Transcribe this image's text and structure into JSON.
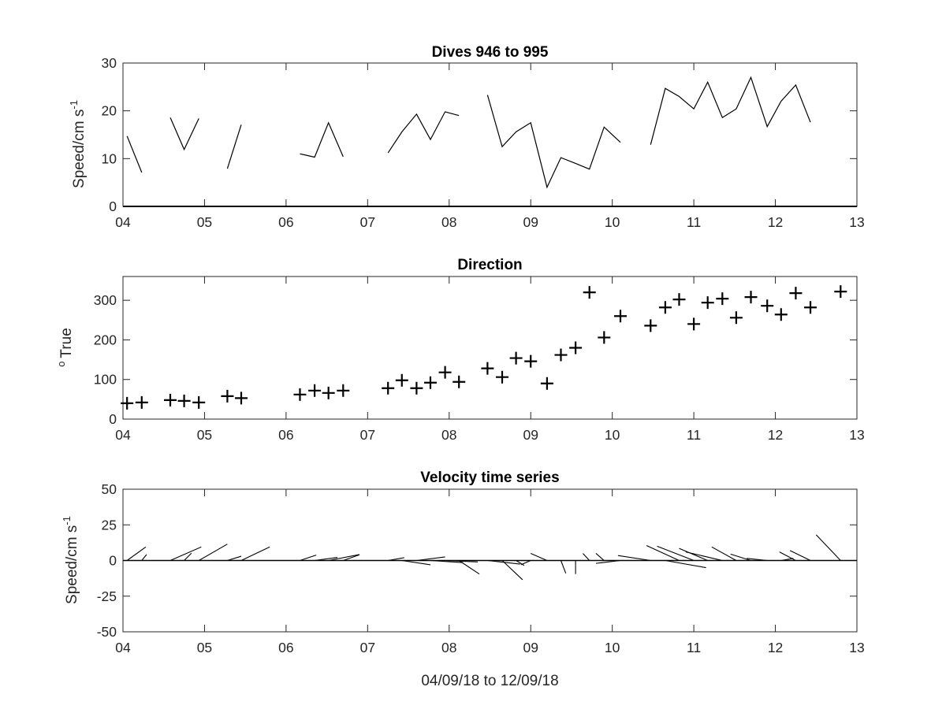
{
  "colors": {
    "line": "#000000",
    "axis": "#262626",
    "background": "#ffffff"
  },
  "x_tick_labels": [
    "04",
    "05",
    "06",
    "07",
    "08",
    "09",
    "10",
    "11",
    "12",
    "13"
  ],
  "xlabel_bottom": "04/09/18 to 12/09/18",
  "chart_data": [
    {
      "type": "line",
      "title": "Dives 946 to 995",
      "ylabel": "Speed/cm s",
      "ylabel_superscript": "-1",
      "xlim": [
        4,
        13
      ],
      "ylim": [
        0,
        30
      ],
      "yticks": [
        0,
        10,
        20,
        30
      ],
      "x_tick_labels": [
        "04",
        "05",
        "06",
        "07",
        "08",
        "09",
        "10",
        "11",
        "12",
        "13"
      ],
      "baseline": 0,
      "segments": [
        {
          "x": [
            4.05,
            4.23
          ],
          "y": [
            14.7,
            7.1
          ]
        },
        {
          "x": [
            4.58,
            4.75,
            4.93
          ],
          "y": [
            18.6,
            11.9,
            18.4
          ]
        },
        {
          "x": [
            5.28,
            5.45
          ],
          "y": [
            7.9,
            17.1
          ]
        },
        {
          "x": [
            6.17,
            6.35,
            6.52,
            6.7
          ],
          "y": [
            11.0,
            10.3,
            17.5,
            10.4
          ]
        },
        {
          "x": [
            7.25,
            7.42,
            7.6,
            7.77,
            7.95,
            8.12
          ],
          "y": [
            11.2,
            15.6,
            19.3,
            14.0,
            19.8,
            19.0
          ]
        },
        {
          "x": [
            8.47,
            8.65,
            8.82,
            9.0,
            9.2,
            9.37,
            9.55,
            9.72,
            9.9,
            10.1
          ],
          "y": [
            23.3,
            12.5,
            15.6,
            17.5,
            4.0,
            10.2,
            9.0,
            7.8,
            16.6,
            13.4
          ]
        },
        {
          "x": [
            10.47,
            10.65,
            10.82,
            11.0,
            11.17,
            11.35,
            11.52,
            11.7,
            11.9,
            12.07,
            12.25,
            12.43
          ],
          "y": [
            12.9,
            24.7,
            23.0,
            20.4,
            26.0,
            18.6,
            20.4,
            27.0,
            16.7,
            22.0,
            25.4,
            17.6
          ]
        }
      ]
    },
    {
      "type": "scatter",
      "title": "Direction",
      "ylabel": "True",
      "ylabel_prefix": "o",
      "marker": "+",
      "xlim": [
        4,
        13
      ],
      "ylim": [
        0,
        360
      ],
      "yticks": [
        0,
        100,
        200,
        300
      ],
      "x_tick_labels": [
        "04",
        "05",
        "06",
        "07",
        "08",
        "09",
        "10",
        "11",
        "12",
        "13"
      ],
      "x": [
        4.05,
        4.23,
        4.58,
        4.75,
        4.93,
        5.28,
        5.45,
        6.17,
        6.35,
        6.52,
        6.7,
        7.25,
        7.42,
        7.6,
        7.77,
        7.95,
        8.12,
        8.47,
        8.65,
        8.82,
        9.0,
        9.2,
        9.37,
        9.55,
        9.72,
        9.9,
        10.1,
        10.47,
        10.65,
        10.82,
        11.0,
        11.17,
        11.35,
        11.52,
        11.7,
        11.9,
        12.07,
        12.25,
        12.43,
        12.8
      ],
      "y": [
        40,
        42,
        48,
        46,
        42,
        58,
        53,
        62,
        72,
        66,
        72,
        78,
        98,
        78,
        92,
        118,
        94,
        128,
        106,
        154,
        146,
        90,
        162,
        180,
        320,
        206,
        260,
        236,
        282,
        302,
        240,
        294,
        304,
        256,
        308,
        286,
        264,
        318,
        282,
        322
      ]
    },
    {
      "type": "quiver",
      "title": "Velocity time series",
      "ylabel": "Speed/cm s",
      "ylabel_superscript": "-1",
      "xlim": [
        4,
        13
      ],
      "ylim": [
        -50,
        50
      ],
      "yticks": [
        -50,
        -25,
        0,
        25,
        50
      ],
      "x_tick_labels": [
        "04",
        "05",
        "06",
        "07",
        "08",
        "09",
        "10",
        "11",
        "12",
        "13"
      ],
      "baseline": 0,
      "vectors": [
        {
          "x": 4.05,
          "dx": 0.23,
          "dy": 9.5
        },
        {
          "x": 4.23,
          "dx": 0.06,
          "dy": 4.2
        },
        {
          "x": 4.58,
          "dx": 0.38,
          "dy": 9.5
        },
        {
          "x": 4.75,
          "dx": 0.09,
          "dy": 5.2
        },
        {
          "x": 4.93,
          "dx": 0.35,
          "dy": 11.5
        },
        {
          "x": 5.28,
          "dx": 0.17,
          "dy": 3.0
        },
        {
          "x": 5.45,
          "dx": 0.35,
          "dy": 9.5
        },
        {
          "x": 6.17,
          "dx": 0.2,
          "dy": 3.8
        },
        {
          "x": 6.35,
          "dx": 0.28,
          "dy": 2.2
        },
        {
          "x": 6.52,
          "dx": 0.38,
          "dy": 4.2
        },
        {
          "x": 6.7,
          "dx": 0.2,
          "dy": 4.0
        },
        {
          "x": 7.25,
          "dx": 0.2,
          "dy": 2.0
        },
        {
          "x": 7.42,
          "dx": 0.35,
          "dy": -3.0
        },
        {
          "x": 7.6,
          "dx": 0.35,
          "dy": 2.5
        },
        {
          "x": 7.77,
          "dx": 0.4,
          "dy": -1.5
        },
        {
          "x": 7.95,
          "dx": 0.4,
          "dy": -1.0
        },
        {
          "x": 8.12,
          "dx": 0.25,
          "dy": -9.5
        },
        {
          "x": 8.47,
          "dx": 0.4,
          "dy": -2.5
        },
        {
          "x": 8.65,
          "dx": 0.25,
          "dy": -13.5
        },
        {
          "x": 8.82,
          "dx": 0.1,
          "dy": -3.5
        },
        {
          "x": 9.0,
          "dx": -0.12,
          "dy": -3.0
        },
        {
          "x": 9.2,
          "dx": -0.2,
          "dy": 5.0
        },
        {
          "x": 9.37,
          "dx": 0.06,
          "dy": -9.0
        },
        {
          "x": 9.55,
          "dx": 0.0,
          "dy": -9.5
        },
        {
          "x": 9.72,
          "dx": -0.08,
          "dy": 5.0
        },
        {
          "x": 9.9,
          "dx": -0.1,
          "dy": 5.0
        },
        {
          "x": 10.1,
          "dx": -0.3,
          "dy": -2.0
        },
        {
          "x": 10.47,
          "dx": -0.4,
          "dy": 3.5
        },
        {
          "x": 10.65,
          "dx": 0.5,
          "dy": -5.0
        },
        {
          "x": 10.82,
          "dx": -0.4,
          "dy": 10.5
        },
        {
          "x": 11.0,
          "dx": -0.45,
          "dy": 10.0
        },
        {
          "x": 11.17,
          "dx": -0.35,
          "dy": 8.5
        },
        {
          "x": 11.35,
          "dx": -0.45,
          "dy": 6.0
        },
        {
          "x": 11.52,
          "dx": -0.3,
          "dy": 9.5
        },
        {
          "x": 11.7,
          "dx": -0.25,
          "dy": 4.5
        },
        {
          "x": 11.9,
          "dx": -0.25,
          "dy": 1.5
        },
        {
          "x": 12.07,
          "dx": 0.15,
          "dy": 1.5
        },
        {
          "x": 12.25,
          "dx": -0.2,
          "dy": 6.0
        },
        {
          "x": 12.43,
          "dx": -0.25,
          "dy": 7.0
        },
        {
          "x": 12.8,
          "dx": -0.3,
          "dy": 18.0
        }
      ]
    }
  ]
}
